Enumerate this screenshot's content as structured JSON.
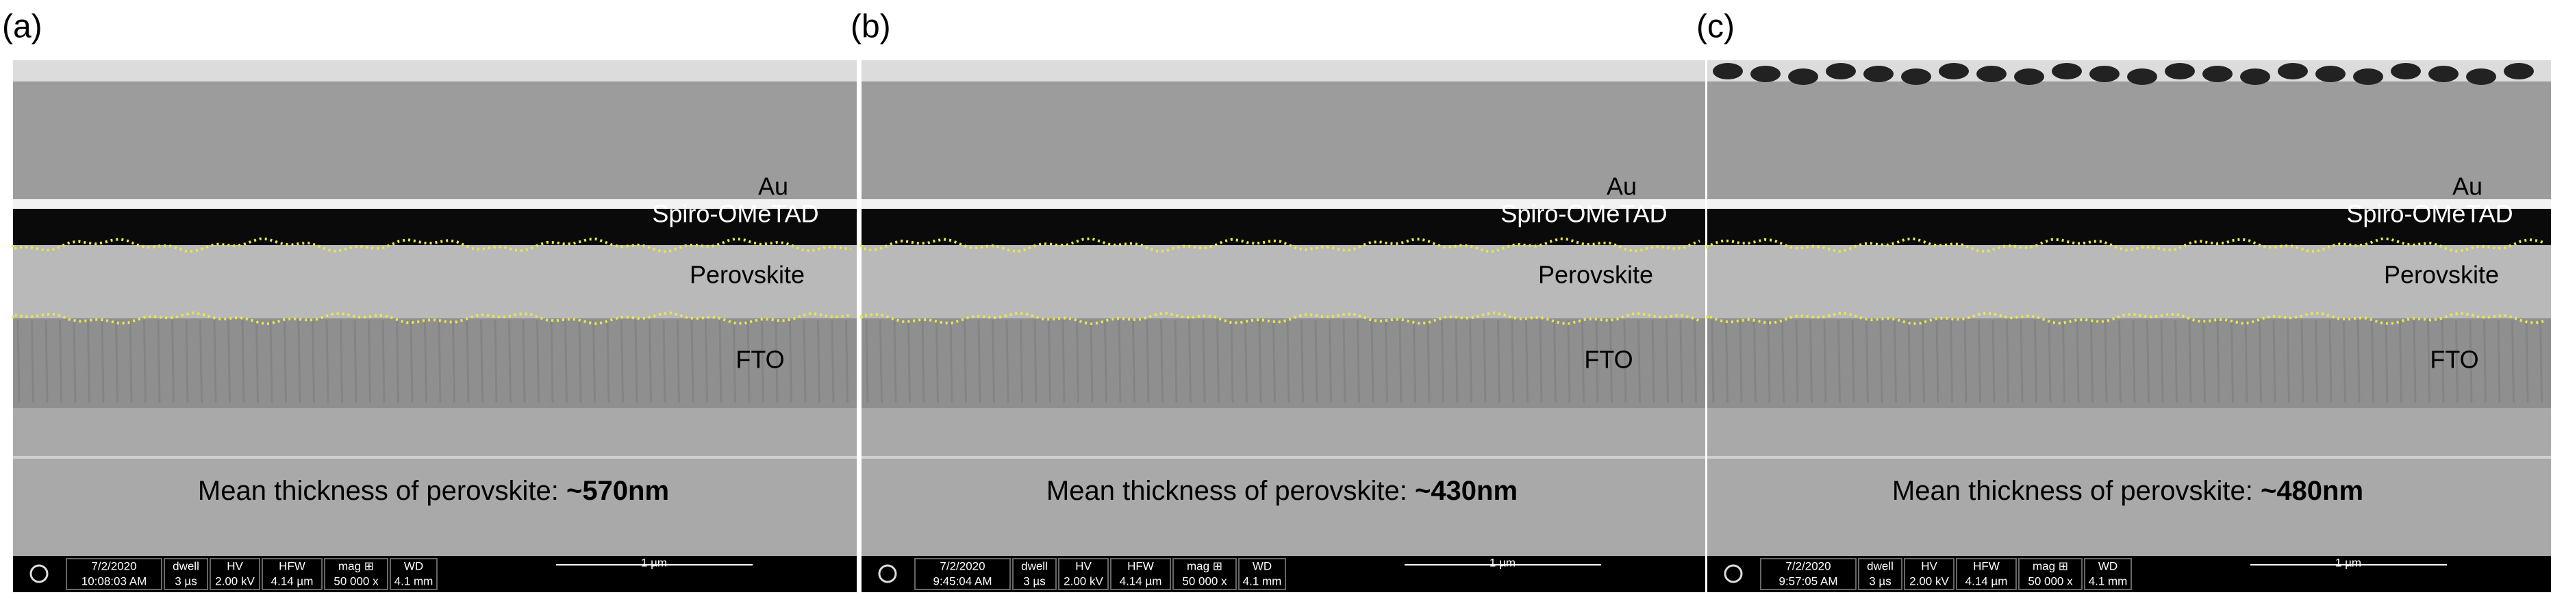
{
  "panels": [
    {
      "label": "(a)",
      "layers": [
        "Au",
        "Spiro-OMeTAD",
        "Perovskite",
        "FTO"
      ],
      "caption": "Mean thickness of perovskite: ",
      "thickness": "~570nm",
      "info": [
        [
          "7/2/2020",
          "10:08:03 AM"
        ],
        [
          "dwell",
          "3 µs"
        ],
        [
          "HV",
          "2.00 kV"
        ],
        [
          "HFW",
          "4.14 µm"
        ],
        [
          "mag ⊞",
          "50 000 x"
        ],
        [
          "WD",
          "4.1 mm"
        ]
      ],
      "scale_bar": "1 µm"
    },
    {
      "label": "(b)",
      "layers": [
        "Au",
        "Spiro-OMeTAD",
        "Perovskite",
        "FTO"
      ],
      "caption": "Mean thickness of perovskite: ",
      "thickness": "~430nm",
      "info": [
        [
          "7/2/2020",
          "9:45:04 AM"
        ],
        [
          "dwell",
          "3 µs"
        ],
        [
          "HV",
          "2.00 kV"
        ],
        [
          "HFW",
          "4.14 µm"
        ],
        [
          "mag ⊞",
          "50 000 x"
        ],
        [
          "WD",
          "4.1 mm"
        ]
      ],
      "scale_bar": "1 µm"
    },
    {
      "label": "(c)",
      "layers": [
        "Au",
        "Spiro-OMeTAD",
        "Perovskite",
        "FTO"
      ],
      "caption": "Mean thickness of perovskite: ",
      "thickness": "~480nm",
      "info": [
        [
          "7/2/2020",
          "9:57:05 AM"
        ],
        [
          "dwell",
          "3 µs"
        ],
        [
          "HV",
          "2.00 kV"
        ],
        [
          "HFW",
          "4.14 µm"
        ],
        [
          "mag ⊞",
          "50 000 x"
        ],
        [
          "WD",
          "4.1 mm"
        ]
      ],
      "scale_bar": "1 µm"
    }
  ]
}
